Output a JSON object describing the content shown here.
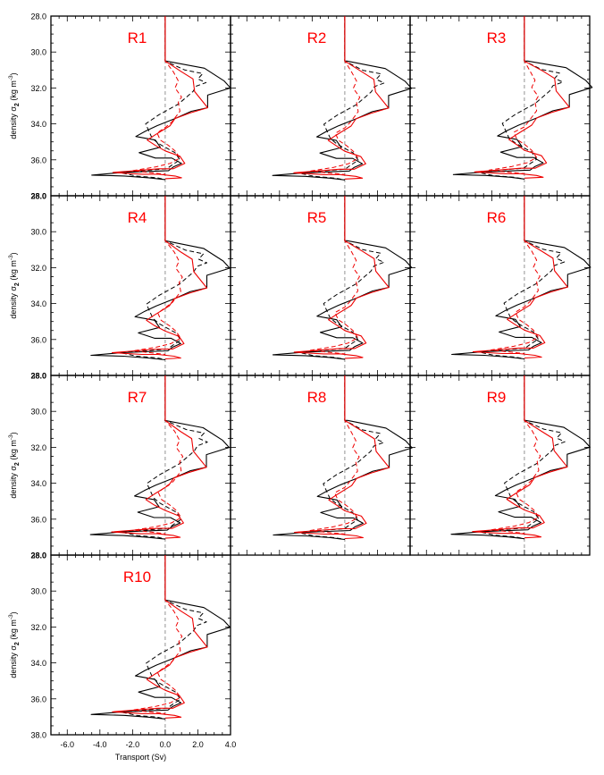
{
  "chart_data": {
    "type": "line",
    "layout": "small-multiples",
    "xlabel": "Transport (Sv)",
    "ylabel_main": "density σ",
    "ylabel_sub": "2",
    "ylabel_units": "(kg m",
    "ylabel_exp": "-3",
    "ylabel_close": ")",
    "xlim": [
      -7.0,
      4.0
    ],
    "ylim": [
      38.0,
      28.0
    ],
    "x_ticks": [
      "-6.0",
      "-4.0",
      "-2.0",
      "0.0",
      "2.0",
      "4.0"
    ],
    "x_tick_values": [
      -6.0,
      -4.0,
      -2.0,
      0.0,
      2.0,
      4.0
    ],
    "y_ticks": [
      "28.0",
      "30.0",
      "32.0",
      "34.0",
      "36.0",
      "38.0"
    ],
    "y_tick_values": [
      28.0,
      30.0,
      32.0,
      34.0,
      36.0,
      38.0
    ],
    "zero_line": 0.0,
    "colors": {
      "solid_black": "#000000",
      "dashed_black": "#000000",
      "solid_red": "#ee0000",
      "dashed_red": "#ee0000",
      "zero": "#888888",
      "label": "#ff0000"
    },
    "panels": [
      {
        "label": "R1"
      },
      {
        "label": "R2"
      },
      {
        "label": "R3"
      },
      {
        "label": "R4"
      },
      {
        "label": "R5"
      },
      {
        "label": "R6"
      },
      {
        "label": "R7"
      },
      {
        "label": "R8"
      },
      {
        "label": "R9"
      },
      {
        "label": "R10"
      }
    ],
    "series": [
      {
        "style": "solid",
        "color": "#000000",
        "points": [
          [
            0,
            28.0
          ],
          [
            0,
            30.5
          ],
          [
            0.05,
            30.5
          ],
          [
            2.4,
            30.9
          ],
          [
            3.6,
            31.6
          ],
          [
            4.0,
            32.0
          ],
          [
            2.6,
            32.4
          ],
          [
            2.6,
            33.1
          ],
          [
            1.6,
            33.3
          ],
          [
            0.6,
            33.7
          ],
          [
            -0.5,
            34.1
          ],
          [
            -1.2,
            34.4
          ],
          [
            -1.8,
            34.7
          ],
          [
            -0.6,
            34.9
          ],
          [
            -0.3,
            35.3
          ],
          [
            -1.6,
            35.6
          ],
          [
            -0.6,
            35.9
          ],
          [
            0.4,
            35.9
          ],
          [
            1.0,
            36.2
          ],
          [
            0.5,
            36.4
          ],
          [
            0.2,
            36.6
          ],
          [
            -2.6,
            36.7
          ],
          [
            -4.5,
            36.85
          ],
          [
            -2.5,
            36.9
          ],
          [
            -1.0,
            37.0
          ],
          [
            0.0,
            37.1
          ]
        ]
      },
      {
        "style": "dashed",
        "color": "#000000",
        "points": [
          [
            0,
            28.0
          ],
          [
            0,
            30.5
          ],
          [
            1.2,
            31.0
          ],
          [
            2.3,
            31.2
          ],
          [
            2.0,
            31.5
          ],
          [
            2.5,
            31.7
          ],
          [
            1.9,
            31.9
          ],
          [
            1.7,
            32.2
          ],
          [
            0.8,
            32.9
          ],
          [
            -0.4,
            33.5
          ],
          [
            -1.2,
            34.0
          ],
          [
            -1.0,
            34.4
          ],
          [
            -0.8,
            34.8
          ],
          [
            -0.4,
            35.1
          ],
          [
            0.6,
            35.6
          ],
          [
            0.9,
            36.0
          ],
          [
            0.4,
            36.3
          ],
          [
            0.1,
            36.5
          ],
          [
            -2.8,
            36.7
          ],
          [
            -1.8,
            36.9
          ],
          [
            -0.5,
            37.0
          ],
          [
            0.0,
            37.1
          ]
        ]
      },
      {
        "style": "solid",
        "color": "#ee0000",
        "points": [
          [
            0,
            28.0
          ],
          [
            0,
            30.5
          ],
          [
            1.0,
            31.1
          ],
          [
            1.7,
            31.5
          ],
          [
            1.8,
            32.2
          ],
          [
            2.6,
            33.1
          ],
          [
            1.5,
            33.4
          ],
          [
            0.6,
            33.7
          ],
          [
            0.3,
            34.1
          ],
          [
            -0.6,
            34.6
          ],
          [
            -1.1,
            34.9
          ],
          [
            -0.6,
            35.2
          ],
          [
            0.0,
            35.5
          ],
          [
            0.9,
            35.8
          ],
          [
            1.2,
            36.2
          ],
          [
            0.5,
            36.5
          ],
          [
            -0.4,
            36.5
          ],
          [
            -1.8,
            36.6
          ],
          [
            -3.2,
            36.7
          ],
          [
            -1.4,
            36.8
          ],
          [
            -0.4,
            36.8
          ],
          [
            0.6,
            36.9
          ],
          [
            1.0,
            37.0
          ],
          [
            0.0,
            37.05
          ]
        ]
      },
      {
        "style": "dashed",
        "color": "#ee0000",
        "points": [
          [
            0,
            28.0
          ],
          [
            0,
            30.5
          ],
          [
            0.5,
            31.1
          ],
          [
            0.8,
            31.6
          ],
          [
            0.6,
            32.0
          ],
          [
            1.0,
            32.5
          ],
          [
            0.8,
            32.8
          ],
          [
            0.9,
            33.3
          ],
          [
            0.4,
            33.9
          ],
          [
            0.0,
            34.2
          ],
          [
            -0.5,
            34.5
          ],
          [
            -0.3,
            34.9
          ],
          [
            0.2,
            35.2
          ],
          [
            0.6,
            35.5
          ],
          [
            0.9,
            35.9
          ],
          [
            0.3,
            36.2
          ],
          [
            -0.6,
            36.4
          ],
          [
            -2.0,
            36.6
          ],
          [
            -1.0,
            36.7
          ],
          [
            0.0,
            36.8
          ]
        ]
      }
    ]
  }
}
